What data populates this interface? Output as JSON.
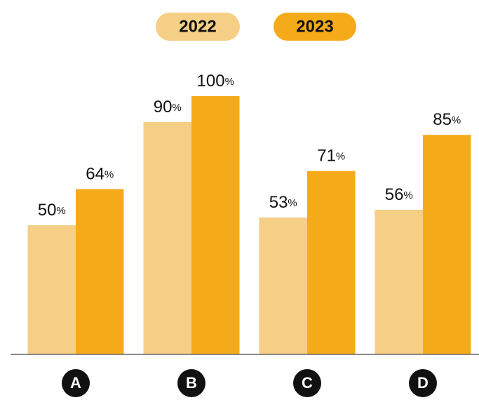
{
  "chart_data": {
    "type": "bar",
    "categories": [
      "A",
      "B",
      "C",
      "D"
    ],
    "series": [
      {
        "name": "2022",
        "color": "#f5cf85",
        "values": [
          50,
          90,
          53,
          56
        ],
        "value_labels": [
          "50%",
          "90%",
          "53%",
          "56%"
        ]
      },
      {
        "name": "2023",
        "color": "#f5ab19",
        "values": [
          64,
          100,
          71,
          85
        ],
        "value_labels": [
          "64%",
          "100%",
          "71%",
          "85%"
        ]
      }
    ],
    "ylim": [
      0,
      100
    ]
  }
}
